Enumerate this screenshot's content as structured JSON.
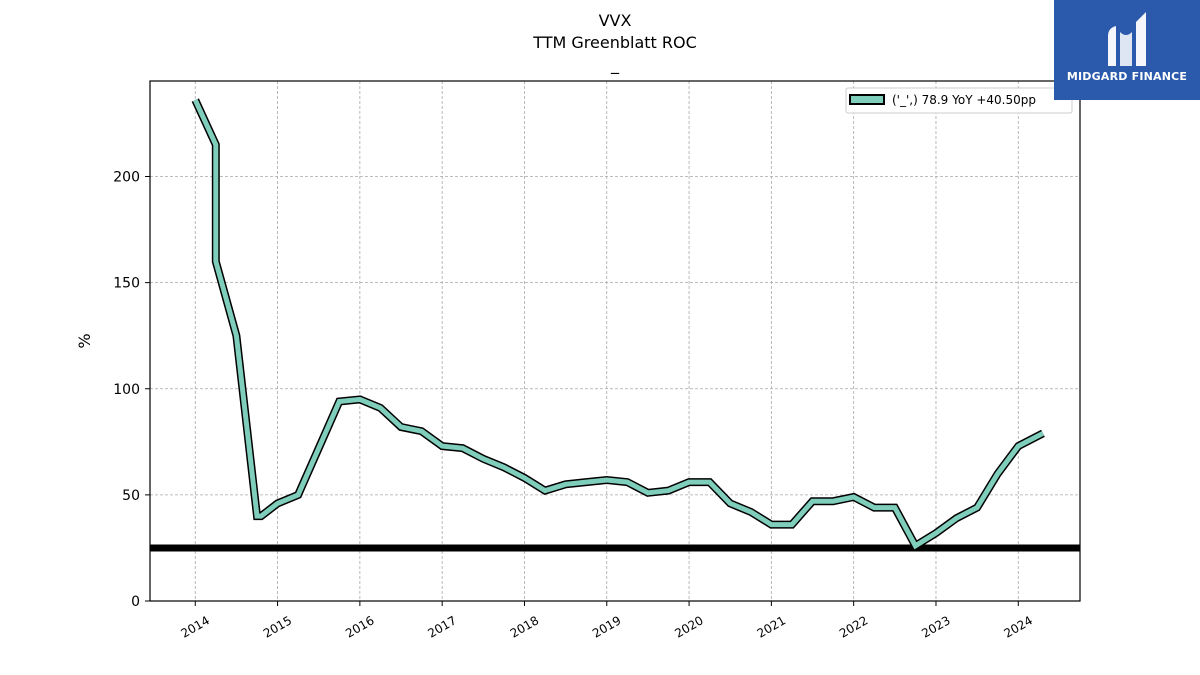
{
  "chart_data": {
    "type": "line",
    "title": "VVX",
    "subtitle": "TTM Greenblatt ROC",
    "subtitle2": "_",
    "xlabel": "",
    "ylabel": "%",
    "xlim": [
      2013.45,
      2024.75
    ],
    "ylim": [
      0,
      245
    ],
    "x_ticks": [
      2014,
      2015,
      2016,
      2017,
      2018,
      2019,
      2020,
      2021,
      2022,
      2023,
      2024
    ],
    "y_ticks": [
      0,
      50,
      100,
      150,
      200
    ],
    "grid": true,
    "legend_position": "top-right",
    "reference_line": {
      "y": 25,
      "color": "#000000"
    },
    "series": [
      {
        "name": "('_',) 78.9 YoY +40.50pp",
        "color": "#7fcdbb",
        "edge_color": "#000000",
        "x": [
          2014.0,
          2014.25,
          2014.25,
          2014.5,
          2014.75,
          2014.8,
          2015.0,
          2015.25,
          2015.5,
          2015.75,
          2016.0,
          2016.25,
          2016.5,
          2016.75,
          2017.0,
          2017.25,
          2017.5,
          2017.75,
          2018.0,
          2018.25,
          2018.5,
          2018.75,
          2019.0,
          2019.25,
          2019.5,
          2019.75,
          2020.0,
          2020.25,
          2020.5,
          2020.75,
          2021.0,
          2021.25,
          2021.5,
          2021.75,
          2022.0,
          2022.25,
          2022.5,
          2022.75,
          2023.0,
          2023.25,
          2023.5,
          2023.75,
          2024.0,
          2024.3
        ],
        "y": [
          236,
          215,
          160,
          125,
          40,
          40,
          46,
          50,
          72,
          94,
          95,
          91,
          82,
          80,
          73,
          72,
          67,
          63,
          58,
          52,
          55,
          56,
          57,
          56,
          51,
          52,
          56,
          56,
          46,
          42,
          36,
          36,
          47,
          47,
          49,
          44,
          44,
          26,
          32,
          39,
          44,
          60,
          73,
          79
        ]
      }
    ]
  },
  "logo": {
    "text": "MIDGARD FINANCE",
    "color": "#2b5aad"
  }
}
